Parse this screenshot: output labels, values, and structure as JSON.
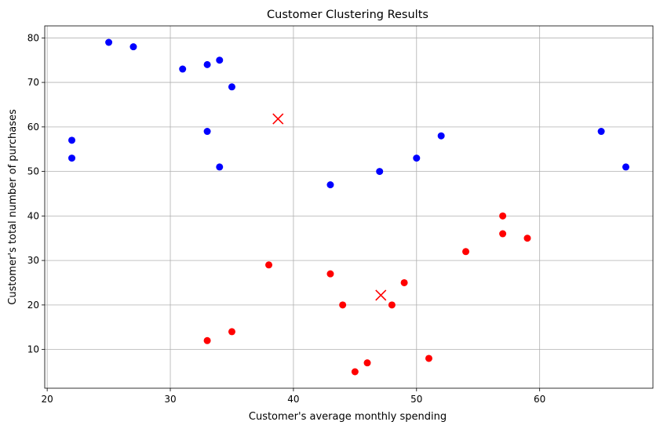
{
  "chart_data": {
    "type": "scatter",
    "title": "Customer Clustering Results",
    "xlabel": "Customer's average monthly spending",
    "ylabel": "Customer's total number of purchases",
    "xlim": [
      19.8,
      69.2
    ],
    "ylim": [
      1.3,
      82.7
    ],
    "xticks": [
      20,
      30,
      40,
      50,
      60
    ],
    "yticks": [
      10,
      20,
      30,
      40,
      50,
      60,
      70,
      80
    ],
    "grid": true,
    "series": [
      {
        "color": "#0000ff",
        "marker": "circle",
        "points": [
          [
            25,
            79
          ],
          [
            27,
            78
          ],
          [
            31,
            73
          ],
          [
            33,
            74
          ],
          [
            34,
            75
          ],
          [
            35,
            69
          ],
          [
            22,
            57
          ],
          [
            22,
            53
          ],
          [
            33,
            59
          ],
          [
            34,
            51
          ],
          [
            43,
            47
          ],
          [
            47,
            50
          ],
          [
            50,
            53
          ],
          [
            52,
            58
          ],
          [
            65,
            59
          ],
          [
            67,
            51
          ]
        ]
      },
      {
        "color": "#ff0000",
        "marker": "circle",
        "points": [
          [
            57,
            40
          ],
          [
            57,
            36
          ],
          [
            59,
            35
          ],
          [
            54,
            32
          ],
          [
            38,
            29
          ],
          [
            43,
            27
          ],
          [
            49,
            25
          ],
          [
            44,
            20
          ],
          [
            48,
            20
          ],
          [
            33,
            12
          ],
          [
            35,
            14
          ],
          [
            45,
            5
          ],
          [
            46,
            7
          ],
          [
            51,
            8
          ]
        ]
      },
      {
        "color": "#ff0000",
        "marker": "x",
        "points": [
          [
            38.75,
            61.8
          ],
          [
            47.1,
            22.2
          ]
        ]
      }
    ]
  }
}
